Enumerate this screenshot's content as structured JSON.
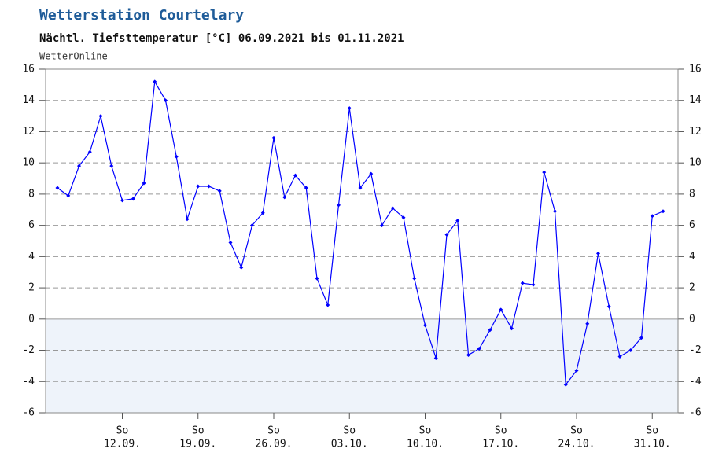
{
  "chart_data": {
    "type": "line",
    "title": "Wetterstation Courtelary",
    "subtitle": "Nächtl. Tiefsttemperatur [°C] 06.09.2021 bis 01.11.2021",
    "source": "WetterOnline",
    "x_weekday": "So",
    "categories": [
      null,
      null,
      null,
      null,
      null,
      null,
      "12.09.",
      null,
      null,
      null,
      null,
      null,
      null,
      "19.09.",
      null,
      null,
      null,
      null,
      null,
      null,
      "26.09.",
      null,
      null,
      null,
      null,
      null,
      null,
      "03.10.",
      null,
      null,
      null,
      null,
      null,
      null,
      "10.10.",
      null,
      null,
      null,
      null,
      null,
      null,
      "17.10.",
      null,
      null,
      null,
      null,
      null,
      null,
      "24.10.",
      null,
      null,
      null,
      null,
      null,
      null,
      "31.10.",
      null
    ],
    "series": [
      {
        "name": "Tiefsttemperatur",
        "color": "#0000ff",
        "values": [
          8.4,
          7.9,
          9.8,
          10.7,
          13.0,
          9.8,
          7.6,
          7.7,
          8.7,
          15.2,
          14.0,
          10.4,
          6.4,
          8.5,
          8.5,
          8.2,
          4.9,
          3.3,
          6.0,
          6.8,
          11.6,
          7.8,
          9.2,
          8.4,
          2.6,
          0.9,
          7.3,
          13.5,
          8.4,
          9.3,
          6.0,
          7.1,
          6.5,
          2.6,
          -0.4,
          -2.5,
          5.4,
          6.3,
          -2.3,
          -1.9,
          -0.7,
          0.6,
          -0.6,
          2.3,
          2.2,
          9.4,
          6.9,
          -4.2,
          -3.3,
          -0.3,
          4.2,
          0.8,
          -2.4,
          -2.0,
          -1.2,
          6.6,
          6.9
        ]
      }
    ],
    "ylim": [
      -6,
      16
    ],
    "yticks": [
      -6,
      -4,
      -2,
      0,
      2,
      4,
      6,
      8,
      10,
      12,
      14,
      16
    ],
    "grid": true,
    "below_zero_fill": "#eef3fa"
  }
}
